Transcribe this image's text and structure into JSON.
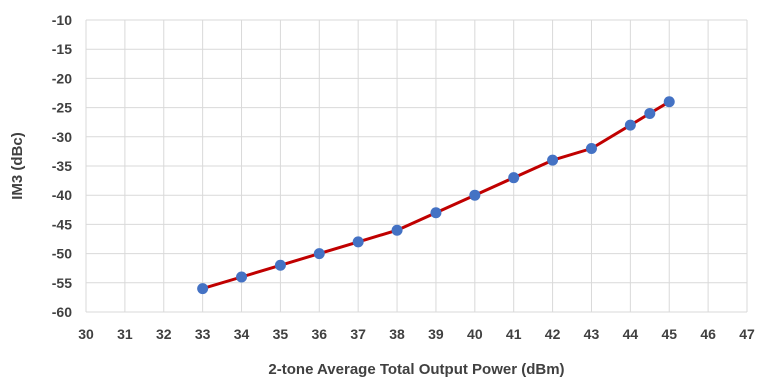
{
  "chart_data": {
    "type": "line",
    "title": "",
    "xlabel": "2-tone Average Total Output Power (dBm)",
    "ylabel": "IM3 (dBc)",
    "xlim": [
      30,
      47
    ],
    "ylim": [
      -60,
      -10
    ],
    "x_ticks": [
      30,
      31,
      32,
      33,
      34,
      35,
      36,
      37,
      38,
      39,
      40,
      41,
      42,
      43,
      44,
      45,
      46,
      47
    ],
    "y_ticks": [
      -10,
      -15,
      -20,
      -25,
      -30,
      -35,
      -40,
      -45,
      -50,
      -55,
      -60
    ],
    "grid": true,
    "legend": "none",
    "series": [
      {
        "x": [
          33,
          34,
          35,
          36,
          37,
          38,
          39,
          40,
          41,
          42,
          43,
          44,
          44.5,
          45
        ],
        "y": [
          -56,
          -54,
          -52,
          -50,
          -48,
          -46,
          -43,
          -40,
          -37,
          -34,
          -32,
          -28,
          -26,
          -24
        ],
        "line_color": "#c00000",
        "marker_color": "#4472c4"
      }
    ]
  }
}
